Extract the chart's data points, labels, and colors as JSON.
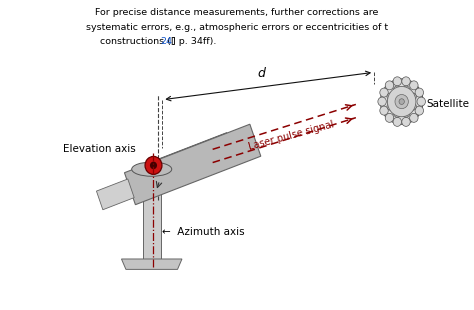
{
  "fig_width": 4.74,
  "fig_height": 3.1,
  "dpi": 100,
  "bg_color": "#ffffff",
  "text_color": "#000000",
  "dark_red": "#8b0000",
  "gray_light": "#c0c0c0",
  "gray_mid": "#a0a0a0",
  "gray_dark": "#808080",
  "label_elevation": "Elevation axis",
  "label_azimuth": "←  Azimuth axis",
  "label_satellite": "Satellite",
  "label_laser": "Laser pulse signal",
  "label_d": "d",
  "line1": "For precise distance measurements, further corrections are",
  "line2": "systematic errors, e.g., atmospheric errors or eccentricities of t",
  "line3a": "constructions ([",
  "line3b": "24",
  "line3c": "] p. 34ff)."
}
